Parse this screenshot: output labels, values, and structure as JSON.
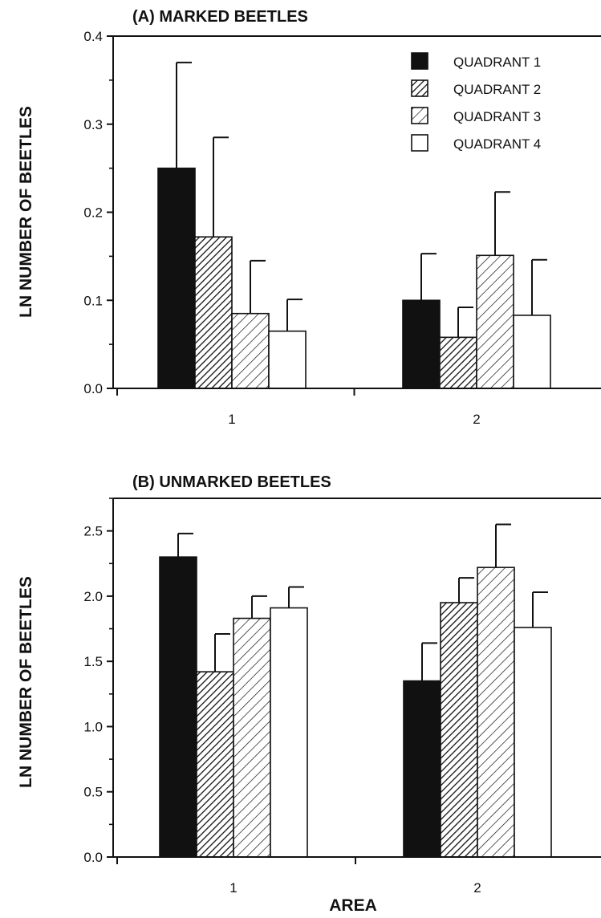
{
  "colors": {
    "ink": "#111111",
    "paper": "#ffffff"
  },
  "fills": [
    "solid-black",
    "dense-hatch",
    "light-hatch",
    "white"
  ],
  "xlabel": "AREA",
  "chart_data": [
    {
      "type": "bar",
      "title": "(A)  MARKED BEETLES",
      "ylabel": "LN NUMBER OF BEETLES",
      "xlabel": "",
      "categories": [
        "1",
        "2"
      ],
      "ylim": [
        0,
        0.4
      ],
      "yticks": [
        "0.0",
        "0.1",
        "0.2",
        "0.3",
        "0.4"
      ],
      "grid": false,
      "legend": "top-right",
      "series": [
        {
          "name": "QUADRANT 1",
          "values": [
            0.25,
            0.1
          ],
          "errors": [
            0.12,
            0.053
          ]
        },
        {
          "name": "QUADRANT 2",
          "values": [
            0.172,
            0.058
          ],
          "errors": [
            0.113,
            0.034
          ]
        },
        {
          "name": "QUADRANT 3",
          "values": [
            0.085,
            0.151
          ],
          "errors": [
            0.06,
            0.072
          ]
        },
        {
          "name": "QUADRANT 4",
          "values": [
            0.065,
            0.083
          ],
          "errors": [
            0.036,
            0.063
          ]
        }
      ]
    },
    {
      "type": "bar",
      "title": "(B)  UNMARKED BEETLES",
      "ylabel": "LN NUMBER OF BEETLES",
      "xlabel": "AREA",
      "categories": [
        "1",
        "2"
      ],
      "ylim": [
        0,
        2.75
      ],
      "yticks": [
        "0.0",
        "0.5",
        "1.0",
        "1.5",
        "2.0",
        "2.5"
      ],
      "grid": false,
      "legend": "none",
      "series": [
        {
          "name": "QUADRANT 1",
          "values": [
            2.3,
            1.35
          ],
          "errors": [
            0.18,
            0.29
          ]
        },
        {
          "name": "QUADRANT 2",
          "values": [
            1.42,
            1.95
          ],
          "errors": [
            0.29,
            0.19
          ]
        },
        {
          "name": "QUADRANT 3",
          "values": [
            1.83,
            2.22
          ],
          "errors": [
            0.17,
            0.33
          ]
        },
        {
          "name": "QUADRANT 4",
          "values": [
            1.91,
            1.76
          ],
          "errors": [
            0.16,
            0.27
          ]
        }
      ]
    }
  ]
}
